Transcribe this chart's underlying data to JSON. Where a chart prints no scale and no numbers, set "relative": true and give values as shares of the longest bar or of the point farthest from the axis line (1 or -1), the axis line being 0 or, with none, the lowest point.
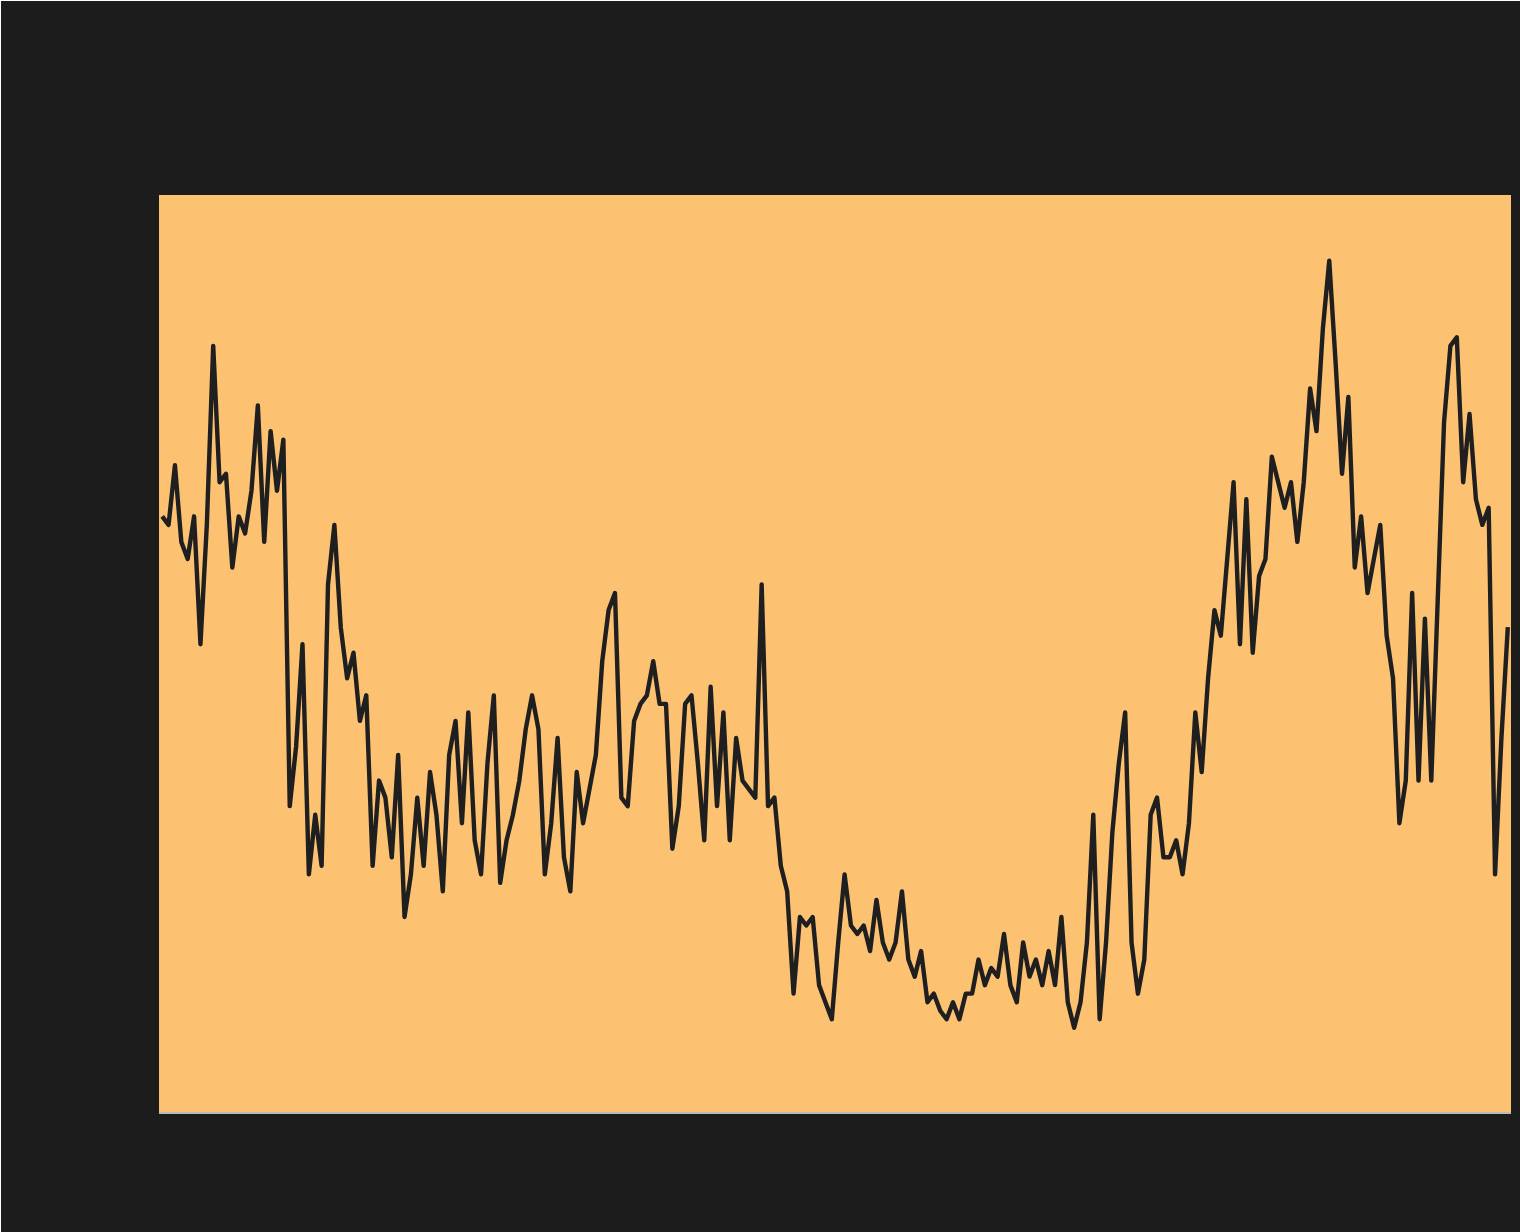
{
  "chart_data": {
    "type": "line",
    "relative": true,
    "line_style": "solid",
    "marker": "none",
    "grid": false,
    "tick_labels": false,
    "categories": [
      null,
      null,
      null,
      null,
      null,
      null,
      null,
      null,
      null,
      null,
      null,
      null,
      null,
      null,
      null,
      null,
      null,
      null,
      null,
      null,
      null,
      null,
      null,
      null,
      null,
      null,
      null,
      null,
      null,
      null,
      null,
      null,
      null,
      null,
      null,
      null,
      null,
      null,
      null,
      null,
      null,
      null,
      null,
      null,
      null,
      null,
      null,
      null,
      null,
      null,
      null,
      null,
      null,
      null,
      null,
      null,
      null,
      null,
      null,
      null,
      null,
      null,
      null,
      null,
      null,
      null,
      null,
      null,
      null,
      null,
      null,
      null,
      null,
      null,
      null,
      null,
      null,
      null,
      null,
      null,
      null,
      null,
      null,
      null,
      null,
      null,
      null,
      null,
      null,
      null,
      null,
      null,
      null,
      null,
      null,
      null,
      null,
      null,
      null,
      null,
      null,
      null,
      null,
      null,
      null,
      null,
      null,
      null,
      null,
      null,
      null,
      null,
      null,
      null,
      null,
      null,
      null,
      null,
      null,
      null,
      null,
      null,
      null,
      null,
      null,
      null,
      null,
      null,
      null,
      null,
      null,
      null,
      null,
      null,
      null,
      null,
      null,
      null,
      null,
      null,
      null,
      null,
      null,
      null,
      null,
      null,
      null,
      null,
      null,
      null,
      null,
      null,
      null,
      null,
      null,
      null,
      null,
      null,
      null,
      null,
      null,
      null,
      null,
      null,
      null,
      null,
      null,
      null,
      null,
      null,
      null,
      null,
      null,
      null,
      null,
      null,
      null,
      null,
      null,
      null,
      null,
      null,
      null,
      null,
      null,
      null,
      null,
      null,
      null,
      null,
      null,
      null,
      null,
      null,
      null,
      null,
      null,
      null,
      null,
      null,
      null,
      null,
      null,
      null,
      null,
      null,
      null,
      null,
      null,
      null,
      null,
      null
    ],
    "series": [
      {
        "color": "#1f1f1f",
        "values": [
          0.7,
          0.69,
          0.76,
          0.67,
          0.65,
          0.7,
          0.55,
          0.69,
          0.9,
          0.74,
          0.75,
          0.64,
          0.7,
          0.68,
          0.73,
          0.83,
          0.67,
          0.8,
          0.73,
          0.79,
          0.36,
          0.43,
          0.55,
          0.28,
          0.35,
          0.29,
          0.62,
          0.69,
          0.57,
          0.51,
          0.54,
          0.46,
          0.49,
          0.29,
          0.39,
          0.37,
          0.3,
          0.42,
          0.23,
          0.28,
          0.37,
          0.29,
          0.4,
          0.35,
          0.26,
          0.42,
          0.46,
          0.34,
          0.47,
          0.32,
          0.28,
          0.41,
          0.49,
          0.27,
          0.32,
          0.35,
          0.39,
          0.45,
          0.49,
          0.45,
          0.28,
          0.34,
          0.44,
          0.3,
          0.26,
          0.4,
          0.34,
          0.38,
          0.42,
          0.53,
          0.59,
          0.61,
          0.37,
          0.36,
          0.46,
          0.48,
          0.49,
          0.53,
          0.48,
          0.48,
          0.31,
          0.36,
          0.48,
          0.49,
          0.41,
          0.32,
          0.5,
          0.36,
          0.47,
          0.32,
          0.44,
          0.39,
          0.38,
          0.37,
          0.62,
          0.36,
          0.37,
          0.29,
          0.26,
          0.14,
          0.23,
          0.22,
          0.23,
          0.15,
          0.13,
          0.11,
          0.2,
          0.28,
          0.22,
          0.21,
          0.22,
          0.19,
          0.25,
          0.2,
          0.18,
          0.2,
          0.26,
          0.18,
          0.16,
          0.19,
          0.13,
          0.14,
          0.12,
          0.11,
          0.13,
          0.11,
          0.14,
          0.14,
          0.18,
          0.15,
          0.17,
          0.16,
          0.21,
          0.15,
          0.13,
          0.2,
          0.16,
          0.18,
          0.15,
          0.19,
          0.15,
          0.23,
          0.13,
          0.1,
          0.13,
          0.2,
          0.35,
          0.11,
          0.2,
          0.33,
          0.41,
          0.47,
          0.2,
          0.14,
          0.18,
          0.35,
          0.37,
          0.3,
          0.3,
          0.32,
          0.28,
          0.34,
          0.47,
          0.4,
          0.51,
          0.59,
          0.56,
          0.65,
          0.74,
          0.55,
          0.72,
          0.54,
          0.63,
          0.65,
          0.77,
          0.74,
          0.71,
          0.74,
          0.67,
          0.74,
          0.85,
          0.8,
          0.92,
          1.0,
          0.88,
          0.75,
          0.84,
          0.64,
          0.7,
          0.61,
          0.65,
          0.69,
          0.56,
          0.51,
          0.34,
          0.39,
          0.61,
          0.39,
          0.58,
          0.39,
          0.6,
          0.81,
          0.9,
          0.91,
          0.74,
          0.82,
          0.72,
          0.69,
          0.71,
          0.28,
          0.44,
          0.57
        ]
      }
    ]
  }
}
